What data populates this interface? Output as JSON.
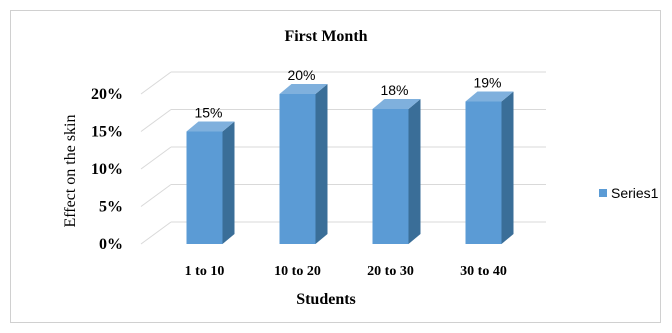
{
  "chart_data": {
    "type": "bar",
    "title": "First Month",
    "xlabel": "Students",
    "ylabel": "Effect on the skin",
    "categories": [
      "1 to 10",
      "10 to 20",
      "20 to 30",
      "30 to 40"
    ],
    "series": [
      {
        "name": "Series1",
        "values": [
          15,
          20,
          18,
          19
        ],
        "color": "#5b9bd5"
      }
    ],
    "data_labels": [
      "15%",
      "20%",
      "18%",
      "19%"
    ],
    "y_ticks": [
      "0%",
      "5%",
      "10%",
      "15%",
      "20%"
    ],
    "ylim": [
      0,
      20
    ],
    "grid": true,
    "style": "3d-column",
    "legend_position": "right"
  }
}
